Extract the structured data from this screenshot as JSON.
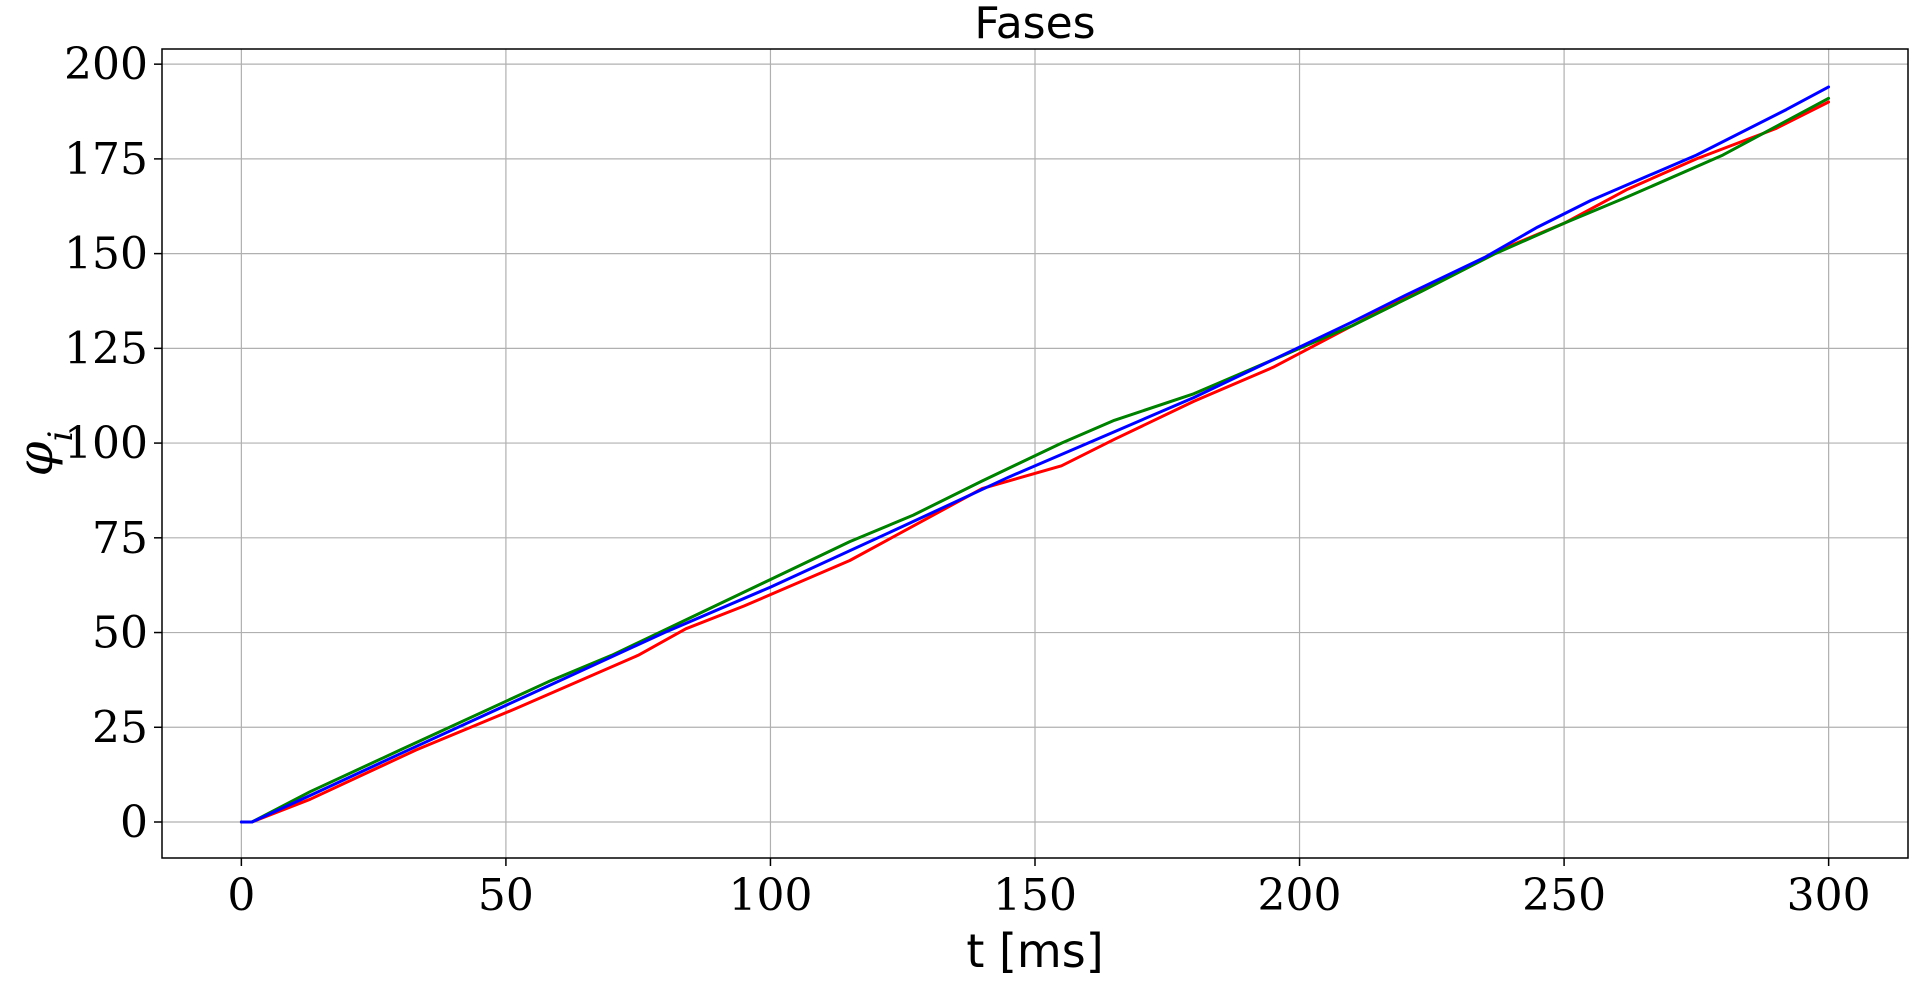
{
  "chart_data": {
    "type": "line",
    "title": "Fases",
    "xlabel": "t [ms]",
    "ylabel": "φ",
    "ylabel_subscript": "i",
    "xlim": [
      -15,
      315
    ],
    "ylim": [
      -9.5,
      204
    ],
    "xticks": [
      0,
      50,
      100,
      150,
      200,
      250,
      300
    ],
    "yticks": [
      0,
      25,
      50,
      75,
      100,
      125,
      150,
      175,
      200
    ],
    "grid": true,
    "series": [
      {
        "color": "#ff0000",
        "x": [
          0,
          2,
          13,
          33,
          52,
          75,
          84,
          95,
          115,
          140,
          155,
          165,
          180,
          195,
          210,
          222,
          238,
          250,
          262,
          275,
          290,
          300
        ],
        "y": [
          0,
          0,
          6,
          19,
          30,
          44,
          51,
          57,
          69,
          88,
          94,
          101,
          111,
          120,
          131,
          140,
          151,
          158,
          167,
          175,
          183,
          190
        ]
      },
      {
        "color": "#008000",
        "x": [
          0,
          2,
          13,
          30,
          58,
          70,
          85,
          100,
          115,
          127,
          140,
          155,
          165,
          180,
          195,
          210,
          223,
          237,
          250,
          262,
          280,
          300
        ],
        "y": [
          0,
          0,
          8,
          19,
          37,
          44,
          54,
          64,
          74,
          81,
          90,
          100,
          106,
          113,
          122,
          131,
          140,
          150,
          158,
          165,
          176,
          191
        ]
      },
      {
        "color": "#0000ff",
        "x": [
          0,
          2,
          13,
          30,
          55,
          80,
          100,
          125,
          145,
          165,
          180,
          195,
          210,
          220,
          235,
          245,
          255,
          275,
          292,
          300
        ],
        "y": [
          0,
          0,
          7,
          18,
          34,
          50,
          62,
          78,
          91,
          103,
          112,
          122,
          132,
          139,
          149,
          157,
          164,
          176,
          188,
          194
        ]
      }
    ]
  }
}
